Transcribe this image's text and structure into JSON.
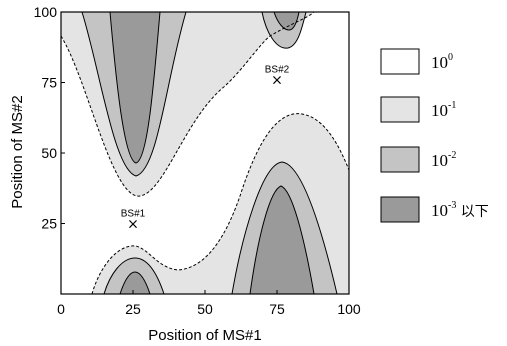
{
  "chart_data": {
    "type": "contour",
    "xlabel": "Position of MS#1",
    "ylabel": "Position of MS#2",
    "xlim": [
      0,
      100
    ],
    "ylim": [
      0,
      100
    ],
    "x_ticks": [
      "0",
      "25",
      "50",
      "75",
      "100"
    ],
    "y_ticks": [
      "25",
      "50",
      "75",
      "100"
    ],
    "grid": false,
    "legend_position": "right",
    "levels": [
      {
        "base": "10",
        "exponent": "0",
        "suffix": "",
        "fill": "#ffffff"
      },
      {
        "base": "10",
        "exponent": "-1",
        "suffix": "",
        "fill": "#e4e4e4"
      },
      {
        "base": "10",
        "exponent": "-2",
        "suffix": "",
        "fill": "#c4c4c4"
      },
      {
        "base": "10",
        "exponent": "-3",
        "suffix": " 以下",
        "fill": "#9a9a9a"
      }
    ],
    "annotations": [
      {
        "label": "BS#1",
        "x": 25,
        "y": 25,
        "marker": "×"
      },
      {
        "label": "BS#2",
        "x": 75,
        "y": 76,
        "marker": "×"
      }
    ]
  }
}
